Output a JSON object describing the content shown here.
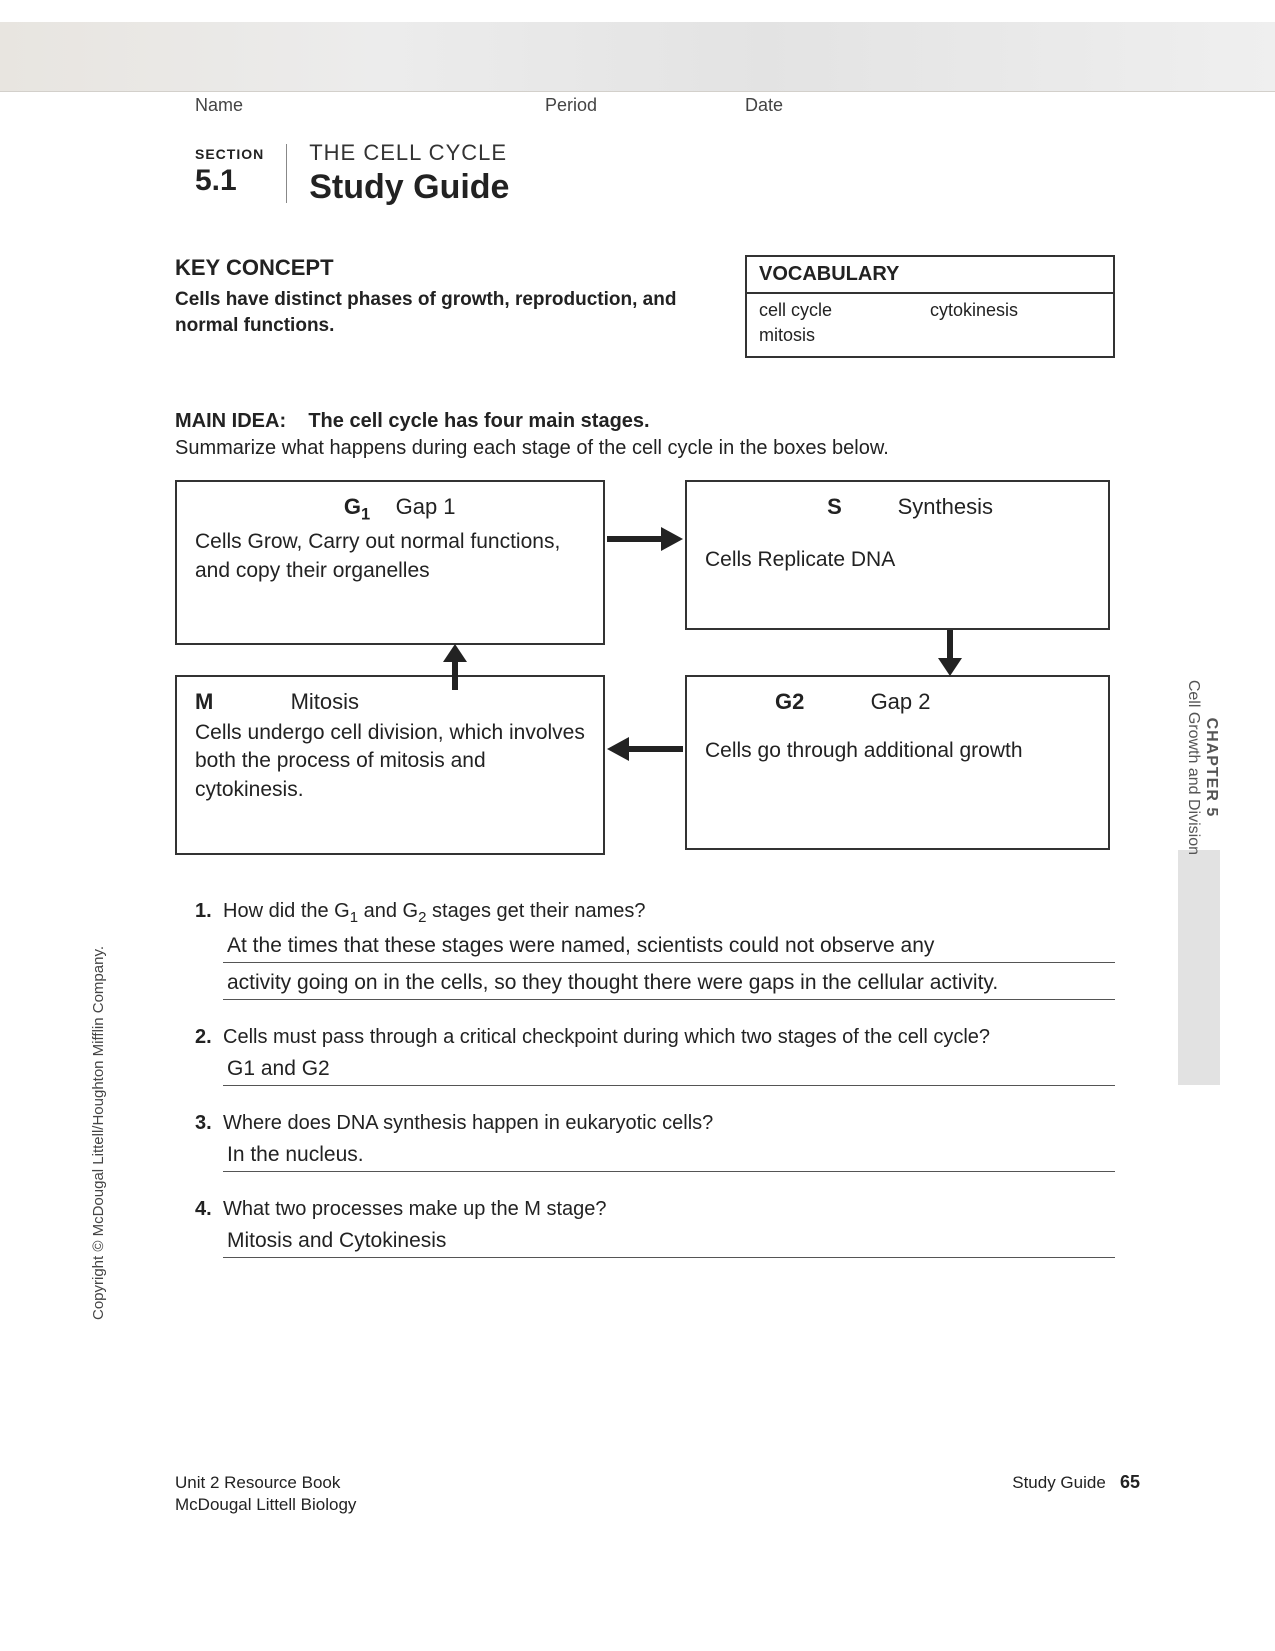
{
  "header": {
    "name_label": "Name",
    "period_label": "Period",
    "date_label": "Date"
  },
  "section": {
    "label": "SECTION",
    "number": "5.1",
    "topic": "THE CELL CYCLE",
    "title": "Study Guide"
  },
  "key_concept": {
    "heading": "KEY CONCEPT",
    "text": "Cells have distinct phases of growth, reproduction, and normal functions."
  },
  "vocabulary": {
    "heading": "VOCABULARY",
    "terms": [
      "cell cycle",
      "cytokinesis",
      "mitosis"
    ]
  },
  "main_idea": {
    "label": "MAIN IDEA:",
    "text": "The cell cycle has four main stages.",
    "instruction": "Summarize what happens during each stage of the cell cycle in the boxes below."
  },
  "diagram": {
    "type": "flowchart",
    "box_border_color": "#333333",
    "arrow_color": "#222222",
    "font_size": 22,
    "nodes": {
      "g1": {
        "symbol_html": "G<sub>1</sub>",
        "name": "Gap 1",
        "desc": "Cells Grow, Carry out normal functions, and copy their organelles"
      },
      "s": {
        "symbol_html": "S",
        "name": "Synthesis",
        "desc": "Cells Replicate DNA"
      },
      "g2": {
        "symbol_html": "G2",
        "name": "Gap 2",
        "desc": "Cells go through additional growth"
      },
      "m": {
        "symbol_html": "M",
        "name": "Mitosis",
        "desc": "Cells undergo cell division, which involves both the process of mitosis and cytokinesis."
      }
    },
    "edges": [
      {
        "from": "g1",
        "to": "s",
        "dir": "right"
      },
      {
        "from": "s",
        "to": "g2",
        "dir": "down"
      },
      {
        "from": "g2",
        "to": "m",
        "dir": "left"
      },
      {
        "from": "m",
        "to": "g1",
        "dir": "up"
      }
    ]
  },
  "questions": {
    "q1": {
      "num": "1.",
      "text_html": "How did the G<sub>1</sub> and G<sub>2</sub> stages get their names?",
      "answer_lines": [
        "At the times that these stages were named, scientists could not observe any",
        "activity going on in the cells, so they thought there were gaps in the cellular activity."
      ]
    },
    "q2": {
      "num": "2.",
      "text": "Cells must pass through a critical checkpoint during which two stages of the cell cycle?",
      "answer": "G1 and G2"
    },
    "q3": {
      "num": "3.",
      "text": "Where does DNA synthesis happen in eukaryotic cells?",
      "answer": "In the nucleus."
    },
    "q4": {
      "num": "4.",
      "text": "What two processes make up the M stage?",
      "answer": "Mitosis and Cytokinesis"
    }
  },
  "margins": {
    "copyright": "Copyright © McDougal Littell/Houghton Mifflin Company.",
    "chapter_main": "CHAPTER 5",
    "chapter_sub": "Cell Growth and Division"
  },
  "footer": {
    "left_line1": "Unit 2 Resource Book",
    "left_line2": "McDougal Littell Biology",
    "right_label": "Study Guide",
    "page_number": "65"
  },
  "colors": {
    "text": "#222222",
    "border": "#333333",
    "tab_bg": "#e2e2e2",
    "line": "#555555",
    "background": "#ffffff"
  }
}
